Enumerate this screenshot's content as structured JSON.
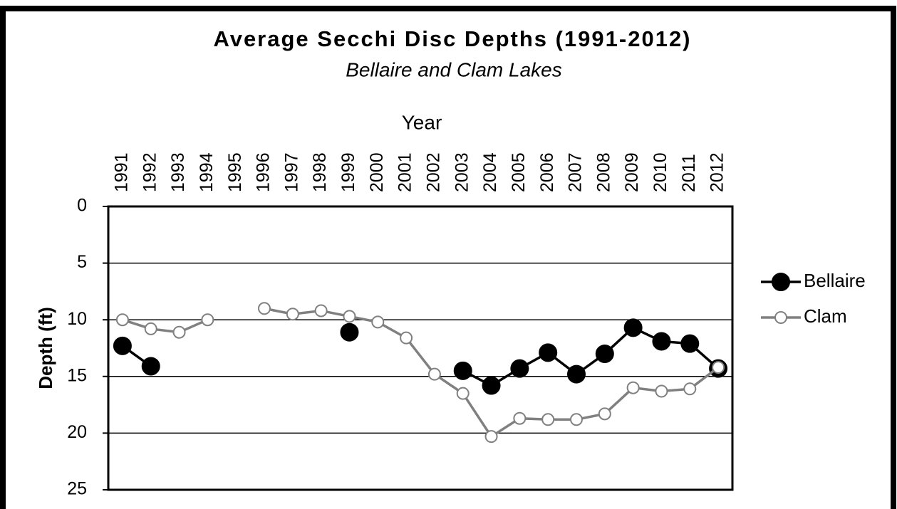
{
  "chart_data": {
    "type": "line",
    "title": "Average Secchi Disc Depths (1991-2012)",
    "subtitle": "Bellaire and Clam Lakes",
    "x_label": "Year",
    "y_label": "Depth (ft)",
    "categories": [
      "1991",
      "1992",
      "1993",
      "1994",
      "1995",
      "1996",
      "1997",
      "1998",
      "1999",
      "2000",
      "2001",
      "2002",
      "2003",
      "2004",
      "2005",
      "2006",
      "2007",
      "2008",
      "2009",
      "2010",
      "2011",
      "2012"
    ],
    "series": [
      {
        "name": "Bellaire",
        "color": "#000000",
        "values": [
          12.3,
          14.1,
          null,
          null,
          null,
          null,
          null,
          null,
          11.1,
          null,
          null,
          null,
          14.5,
          15.8,
          14.3,
          12.9,
          14.8,
          13.0,
          10.7,
          11.9,
          12.1,
          14.3
        ]
      },
      {
        "name": "Clam",
        "color": "#808080",
        "values": [
          10.0,
          10.8,
          11.1,
          10.0,
          null,
          9.0,
          9.5,
          9.2,
          9.7,
          10.2,
          11.6,
          14.8,
          16.5,
          20.3,
          18.7,
          18.8,
          18.8,
          18.3,
          16.0,
          16.3,
          16.1,
          14.2
        ]
      }
    ],
    "ylim": [
      0,
      25
    ],
    "yticks": [
      0,
      5,
      10,
      15,
      20,
      25
    ],
    "y_reversed": true,
    "x_axis_position": "top",
    "grid": true,
    "legend": "right"
  }
}
